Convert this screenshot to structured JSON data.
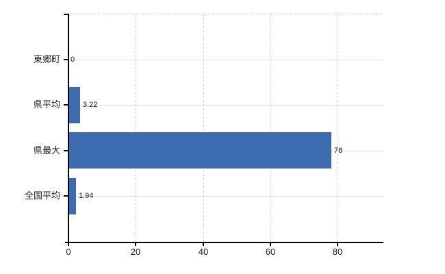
{
  "chart_data": {
    "type": "bar",
    "orientation": "horizontal",
    "categories": [
      "東郷町",
      "県平均",
      "県最大",
      "全国平均"
    ],
    "values": [
      0,
      3.22,
      78,
      1.94
    ],
    "value_labels": [
      "0",
      "3.22",
      "78",
      "1.94"
    ],
    "x_ticks": [
      0,
      20,
      40,
      60,
      80
    ],
    "x_tick_labels": [
      "0",
      "20",
      "40",
      "60",
      "80"
    ],
    "xlim": [
      0,
      93.6
    ],
    "title": "",
    "xlabel": "",
    "ylabel": "",
    "grid": true,
    "legend": false,
    "colors": {
      "bar": "#3c6cae",
      "grid_horizontal": "#d5dad5",
      "grid_vertical": "#d8d0d8",
      "axis": "#000000",
      "text": "#1a1a1a",
      "background": "#ffffff"
    }
  }
}
